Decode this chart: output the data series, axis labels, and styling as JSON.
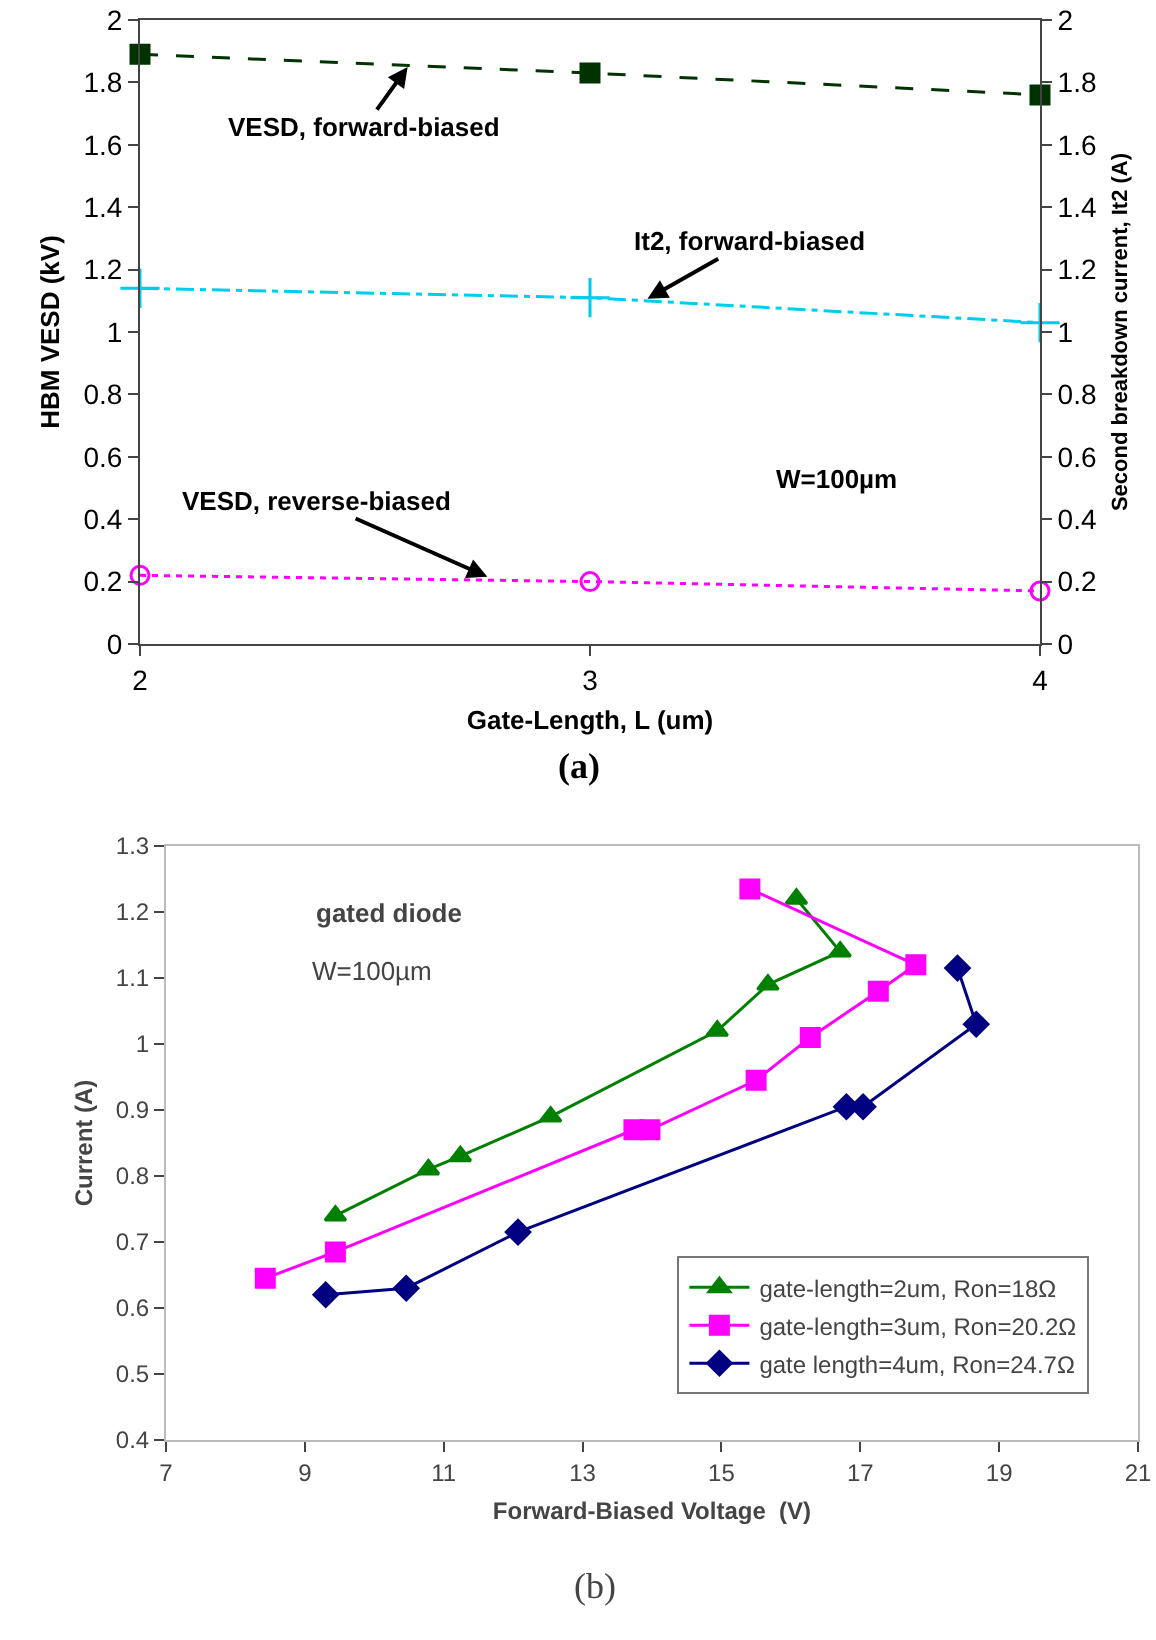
{
  "chart_data": [
    {
      "type": "line",
      "xlabel": "Gate-Length, L (um)",
      "ylabel": "HBM VESD (kV)",
      "y2label": "Second breakdown current, It2 (A)",
      "x": [
        2,
        3,
        4
      ],
      "xlim": [
        2,
        4
      ],
      "xticks": [
        2,
        3,
        4
      ],
      "ylim": [
        0,
        2
      ],
      "yticks": [
        0,
        0.2,
        0.4,
        0.6,
        0.8,
        1,
        1.2,
        1.4,
        1.6,
        1.8,
        2
      ],
      "y2lim": [
        0,
        2
      ],
      "y2ticks": [
        0,
        0.2,
        0.4,
        0.6,
        0.8,
        1,
        1.2,
        1.4,
        1.6,
        1.8,
        2
      ],
      "grid": false,
      "legend": false,
      "series": [
        {
          "color": "#003300",
          "values": [
            1.89,
            1.83,
            1.76
          ],
          "line_style": "dashed",
          "marker": "square"
        },
        {
          "color": "#00ccee",
          "values": [
            1.14,
            1.11,
            1.03
          ],
          "axis": "y2",
          "line_style": "dashdot",
          "marker": "cross"
        },
        {
          "color": "#ff00ff",
          "values": [
            0.22,
            0.2,
            0.17
          ],
          "line_style": "dotted",
          "marker": "circle"
        }
      ],
      "annotations": [
        {
          "text": "VESD, forward-biased",
          "x": 2.6,
          "y": 1.86
        },
        {
          "text": "It2, forward-biased",
          "x": 3.12,
          "y": 1.1
        },
        {
          "text": "VESD, reverse-biased",
          "x": 2.78,
          "y": 0.21
        },
        "W=100µm",
        "(a)"
      ]
    },
    {
      "type": "line",
      "xlabel": "Forward-Biased Voltage  (V)",
      "ylabel": "Current (A)",
      "xlim": [
        7,
        21
      ],
      "xticks": [
        7,
        9,
        11,
        13,
        15,
        17,
        19,
        21
      ],
      "ylim": [
        0.4,
        1.3
      ],
      "yticks": [
        0.4,
        0.5,
        0.6,
        0.7,
        0.8,
        0.9,
        1,
        1.1,
        1.2,
        1.3
      ],
      "grid": false,
      "legend": "bottom right",
      "series": [
        {
          "name": "gate-length=2um, Ron=18Ω",
          "color": "#008000",
          "marker": "triangle",
          "x": [
            9.44,
            10.78,
            11.24,
            12.54,
            14.94,
            15.67,
            16.71,
            16.08
          ],
          "values": [
            0.74,
            0.81,
            0.83,
            0.89,
            1.02,
            1.09,
            1.14,
            1.22
          ]
        },
        {
          "name": "gate-length=3um, Ron=20.2Ω",
          "color": "#ff00ff",
          "marker": "square",
          "x": [
            8.43,
            9.44,
            13.74,
            13.97,
            15.5,
            16.28,
            17.26,
            17.8,
            15.41
          ],
          "values": [
            0.645,
            0.685,
            0.87,
            0.87,
            0.945,
            1.01,
            1.08,
            1.12,
            1.235
          ]
        },
        {
          "name": "gate length=4um, Ron=24.7Ω",
          "color": "#000080",
          "marker": "diamond",
          "x": [
            9.3,
            10.46,
            12.07,
            16.8,
            17.04,
            18.67,
            18.4
          ],
          "values": [
            0.62,
            0.63,
            0.715,
            0.905,
            0.905,
            1.03,
            1.115
          ]
        }
      ],
      "annotations": [
        "gated diode",
        "W=100µm",
        "(b)"
      ]
    }
  ]
}
